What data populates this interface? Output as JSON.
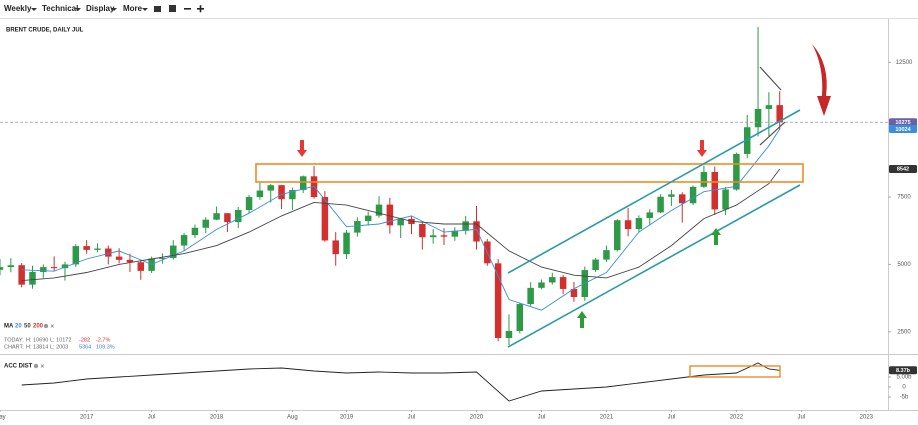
{
  "toolbar": {
    "items": [
      "Weekly",
      "Technical",
      "Display",
      "More"
    ]
  },
  "legend": {
    "label": "MA",
    "extra_period": "200"
  },
  "stats": [
    [
      "TODAY:",
      "H: 10690",
      "L: 10172",
      "-282",
      "-2.7%"
    ],
    [
      "CHART:",
      "H: 13814",
      "L: 2003",
      "5364",
      "109.3%"
    ]
  ],
  "chart_data": [
    {
      "type": "candlestick",
      "title": "BRENT CRUDE, DAILY JUL",
      "x": [
        "2016-05",
        "2016-06",
        "2016-07",
        "2016-08",
        "2016-09",
        "2016-10",
        "2016-11",
        "2016-12",
        "2017-01",
        "2017-02",
        "2017-03",
        "2017-04",
        "2017-05",
        "2017-06",
        "2017-07",
        "2017-08",
        "2017-09",
        "2017-10",
        "2017-11",
        "2017-12",
        "2018-01",
        "2018-02",
        "2018-03",
        "2018-04",
        "2018-05",
        "2018-06",
        "2018-07",
        "2018-08",
        "2018-09",
        "2018-10",
        "2018-11",
        "2018-12",
        "2019-01",
        "2019-02",
        "2019-03",
        "2019-04",
        "2019-05",
        "2019-06",
        "2019-07",
        "2019-08",
        "2019-09",
        "2019-10",
        "2019-11",
        "2019-12",
        "2020-01",
        "2020-02",
        "2020-03",
        "2020-04",
        "2020-05",
        "2020-06",
        "2020-07",
        "2020-08",
        "2020-09",
        "2020-10",
        "2020-11",
        "2020-12",
        "2021-01",
        "2021-02",
        "2021-03",
        "2021-04",
        "2021-05",
        "2021-06",
        "2021-07",
        "2021-08",
        "2021-09",
        "2021-10",
        "2021-11",
        "2021-12",
        "2022-01",
        "2022-02",
        "2022-03",
        "2022-04",
        "2022-05"
      ],
      "open": [
        4800,
        4900,
        4970,
        4250,
        4720,
        4900,
        4860,
        5000,
        5680,
        5540,
        5590,
        5290,
        5170,
        5080,
        4760,
        5220,
        5240,
        5700,
        6090,
        6360,
        6660,
        6900,
        6570,
        7020,
        7500,
        7740,
        7940,
        7420,
        7760,
        8270,
        7500,
        5890,
        5380,
        6180,
        6610,
        6810,
        7220,
        6450,
        6690,
        6500,
        6010,
        6080,
        6030,
        6250,
        6600,
        5850,
        5040,
        2270,
        2530,
        3530,
        4130,
        4330,
        4530,
        4090,
        3790,
        4790,
        5180,
        5530,
        6640,
        6310,
        6720,
        6930,
        7510,
        7600,
        7270,
        7880,
        8430,
        7040,
        7780,
        9100,
        10090,
        10770,
        10910
      ],
      "high": [
        5200,
        5230,
        5050,
        4950,
        5000,
        5300,
        5100,
        5750,
        5900,
        5780,
        5700,
        5600,
        5400,
        5150,
        5290,
        5410,
        5900,
        6170,
        6480,
        6750,
        7150,
        6900,
        7130,
        7580,
        8050,
        7990,
        7950,
        7850,
        8300,
        8650,
        7720,
        6200,
        6280,
        6750,
        6960,
        7530,
        7470,
        6730,
        6790,
        6610,
        6310,
        6340,
        6380,
        6800,
        7170,
        5940,
        5200,
        3150,
        3580,
        4340,
        4440,
        4690,
        4610,
        4350,
        4920,
        5240,
        5700,
        6680,
        7100,
        6820,
        7050,
        7600,
        7770,
        7680,
        7930,
        8670,
        8630,
        7880,
        9150,
        10550,
        13814,
        11390,
        11430
      ],
      "low": [
        4600,
        4710,
        4150,
        4100,
        4500,
        4750,
        4400,
        4900,
        5400,
        5450,
        5000,
        5040,
        4720,
        4430,
        4680,
        5030,
        5180,
        5500,
        5980,
        6160,
        6640,
        6200,
        6350,
        6900,
        7400,
        7300,
        7050,
        7020,
        7650,
        7440,
        5840,
        4950,
        5200,
        6030,
        6450,
        6730,
        6140,
        5980,
        6120,
        5550,
        5770,
        5720,
        5880,
        6110,
        5550,
        4950,
        2150,
        2003,
        2440,
        3450,
        4080,
        4250,
        3900,
        3610,
        3650,
        4720,
        5090,
        5480,
        6040,
        6200,
        6450,
        6900,
        7170,
        6550,
        7200,
        7840,
        6840,
        6840,
        7730,
        8940,
        9750,
        9760,
        9990
      ],
      "close": [
        4900,
        4970,
        4250,
        4720,
        4900,
        4860,
        5000,
        5680,
        5540,
        5590,
        5290,
        5170,
        5080,
        4760,
        5220,
        5240,
        5700,
        6090,
        6360,
        6660,
        6900,
        6570,
        7020,
        7500,
        7740,
        7940,
        7420,
        7760,
        8270,
        7500,
        5890,
        5380,
        6180,
        6610,
        6810,
        7220,
        6450,
        6690,
        6500,
        6010,
        6080,
        6030,
        6250,
        6600,
        5850,
        5040,
        2270,
        2530,
        3530,
        4130,
        4330,
        4530,
        4090,
        3790,
        4790,
        5180,
        5530,
        6640,
        6310,
        6720,
        6930,
        7510,
        7600,
        7270,
        7880,
        8430,
        7040,
        7780,
        9100,
        10090,
        10770,
        10910,
        10275
      ],
      "color_up": "#2e9a48",
      "color_down": "#d32f2f",
      "overlays": [
        {
          "name": "20",
          "color": "#3a8fd6",
          "x": [
            "2016-07",
            "2016-10",
            "2017-01",
            "2017-04",
            "2017-07",
            "2017-10",
            "2018-01",
            "2018-04",
            "2018-07",
            "2018-10",
            "2019-01",
            "2019-04",
            "2019-07",
            "2019-10",
            "2020-01",
            "2020-04",
            "2020-07",
            "2020-10",
            "2021-01",
            "2021-04",
            "2021-07",
            "2021-10",
            "2022-01",
            "2022-04",
            "2022-05"
          ],
          "values": [
            4800,
            4750,
            5200,
            5500,
            5000,
            5500,
            6300,
            6900,
            7600,
            7900,
            6400,
            6500,
            6800,
            6200,
            6300,
            3700,
            3300,
            4100,
            4700,
            6200,
            7000,
            7700,
            7900,
            9400,
            10024
          ]
        },
        {
          "name": "50",
          "color": "#444444",
          "x": [
            "2016-07",
            "2016-10",
            "2017-01",
            "2017-04",
            "2017-07",
            "2017-10",
            "2018-01",
            "2018-04",
            "2018-07",
            "2018-10",
            "2019-01",
            "2019-04",
            "2019-07",
            "2019-10",
            "2020-01",
            "2020-04",
            "2020-07",
            "2020-10",
            "2021-01",
            "2021-04",
            "2021-07",
            "2021-10",
            "2022-01",
            "2022-04",
            "2022-05"
          ],
          "values": [
            4400,
            4500,
            4700,
            5000,
            5200,
            5400,
            5700,
            6200,
            6800,
            7300,
            7200,
            6900,
            6600,
            6500,
            6500,
            5500,
            4900,
            4600,
            4500,
            4900,
            5700,
            6700,
            7200,
            8000,
            8542
          ]
        }
      ],
      "price_tags": [
        {
          "value": 10275,
          "color": "#6b5fa8"
        },
        {
          "value": 10024,
          "color": "#3a8fd6"
        },
        {
          "value": 8542,
          "color": "#333333"
        }
      ],
      "ylim": [
        1750,
        14070
      ],
      "yticks": [
        2500,
        5000,
        7500,
        12500
      ],
      "xlim": [
        "2016-05",
        "2023-03"
      ],
      "xticks": [
        {
          "value": "2016-05",
          "label": "May"
        },
        {
          "value": "2017-01",
          "label": "2017"
        },
        {
          "value": "2017-07",
          "label": "Jul"
        },
        {
          "value": "2018-01",
          "label": "2018"
        },
        {
          "value": "2018-08",
          "label": "Aug"
        },
        {
          "value": "2019-01",
          "label": "2019"
        },
        {
          "value": "2019-07",
          "label": "Jul"
        },
        {
          "value": "2020-01",
          "label": "2020"
        },
        {
          "value": "2020-07",
          "label": "Jul"
        },
        {
          "value": "2021-01",
          "label": "2021"
        },
        {
          "value": "2021-07",
          "label": "Jul"
        },
        {
          "value": "2022-01",
          "label": "2022"
        },
        {
          "value": "2022-07",
          "label": "Jul"
        },
        {
          "value": "2023-01",
          "label": "2023"
        }
      ]
    },
    {
      "type": "line",
      "title": "ACC DIST",
      "color": "#222222",
      "x": [
        "2016-07",
        "2016-10",
        "2017-01",
        "2017-04",
        "2017-07",
        "2017-10",
        "2018-01",
        "2018-04",
        "2018-07",
        "2018-10",
        "2019-01",
        "2019-04",
        "2019-07",
        "2019-10",
        "2020-01",
        "2020-04",
        "2020-07",
        "2020-10",
        "2021-01",
        "2021-04",
        "2021-07",
        "2021-10",
        "2022-01",
        "2022-03",
        "2022-04",
        "2022-05"
      ],
      "values": [
        1,
        2,
        4,
        5,
        6,
        7,
        8,
        9,
        9.5,
        8,
        7,
        7.5,
        7,
        7,
        7.5,
        -7,
        -2,
        -1,
        0,
        2,
        4,
        6,
        7,
        12,
        9,
        8.37
      ],
      "value_tag": {
        "value": 8.37,
        "label": "8.37b",
        "color": "#333333"
      },
      "ylim": [
        -11.5,
        15
      ],
      "yticks": [
        {
          "value": 5,
          "label": "5.00b"
        },
        0,
        {
          "value": -5,
          "label": "-5b"
        }
      ]
    }
  ]
}
